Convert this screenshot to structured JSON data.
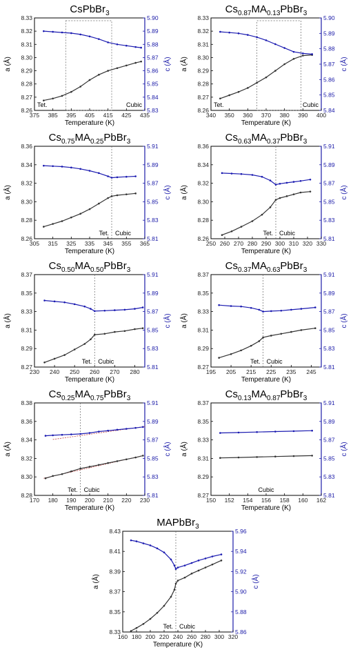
{
  "colors": {
    "a_series": "#333333",
    "c_series": "#1a1ab0",
    "right_axis": "#1a1aa8",
    "fit_line": "#c04040",
    "guide": "#666666"
  },
  "chart_data": [
    {
      "type": "line",
      "title": {
        "pre": "CsPbBr",
        "sub1": "",
        "mid": "",
        "sub2": "3"
      },
      "xlabel": "Temperature (K)",
      "ylabel_left": "a (Å)",
      "ylabel_right": "c (Å)",
      "xlim": [
        375,
        435
      ],
      "xticks": [
        "375",
        "385",
        "395",
        "405",
        "415",
        "425",
        "435"
      ],
      "ylim_left": [
        8.26,
        8.33
      ],
      "yticks_left": [
        "8.26",
        "8.27",
        "8.28",
        "8.29",
        "8.30",
        "8.31",
        "8.32",
        "8.33"
      ],
      "ylim_right": [
        5.83,
        5.9
      ],
      "yticks_right": [
        "5.83",
        "5.84",
        "5.85",
        "5.86",
        "5.87",
        "5.88",
        "5.89",
        "5.90"
      ],
      "phase_labels": [
        "Tet.",
        "Cubic"
      ],
      "phase_boundary": 417,
      "box": [
        392,
        417
      ],
      "series": [
        {
          "name": "a",
          "axis": "left",
          "x": [
            380,
            385,
            390,
            395,
            400,
            405,
            410,
            415,
            420,
            425,
            430,
            433
          ],
          "y": [
            8.2675,
            8.269,
            8.271,
            8.274,
            8.278,
            8.283,
            8.287,
            8.29,
            8.292,
            8.294,
            8.296,
            8.297
          ]
        },
        {
          "name": "c",
          "axis": "right",
          "x": [
            380,
            385,
            390,
            395,
            400,
            405,
            410,
            415,
            420,
            425,
            430,
            433
          ],
          "y": [
            5.89,
            5.8895,
            5.889,
            5.8885,
            5.8875,
            5.886,
            5.884,
            5.8815,
            5.88,
            5.879,
            5.878,
            5.8775
          ]
        }
      ]
    },
    {
      "type": "line",
      "title": {
        "pre": "Cs",
        "sub1": "0.87",
        "mid": "MA",
        "sub2": "0.13",
        "post": "PbBr",
        "sub3": "3"
      },
      "xlabel": "Temperature (K)",
      "ylabel_left": "a (Å)",
      "ylabel_right": "c (Å)",
      "xlim": [
        340,
        400
      ],
      "xticks": [
        "340",
        "350",
        "360",
        "370",
        "380",
        "390",
        "400"
      ],
      "ylim_left": [
        8.26,
        8.33
      ],
      "yticks_left": [
        "8.26",
        "8.27",
        "8.28",
        "8.29",
        "8.30",
        "8.31",
        "8.32",
        "8.33"
      ],
      "ylim_right": [
        5.84,
        5.9
      ],
      "yticks_right": [
        "5.84",
        "5.85",
        "5.86",
        "5.87",
        "5.88",
        "5.89",
        "5.90"
      ],
      "phase_labels": [
        "Tet.",
        "Cubic"
      ],
      "phase_boundary": 389,
      "box": [
        365,
        389
      ],
      "series": [
        {
          "name": "a",
          "axis": "left",
          "x": [
            345,
            350,
            355,
            360,
            365,
            370,
            375,
            380,
            385,
            390,
            395
          ],
          "y": [
            8.269,
            8.2715,
            8.274,
            8.277,
            8.281,
            8.285,
            8.29,
            8.295,
            8.299,
            8.3015,
            8.302
          ]
        },
        {
          "name": "c",
          "axis": "right",
          "x": [
            345,
            350,
            355,
            360,
            365,
            370,
            375,
            380,
            385,
            390,
            395
          ],
          "y": [
            5.891,
            5.8905,
            5.89,
            5.889,
            5.8875,
            5.8855,
            5.883,
            5.8805,
            5.878,
            5.877,
            5.8765
          ]
        }
      ]
    },
    {
      "type": "line",
      "title": {
        "pre": "Cs",
        "sub1": "0.75",
        "mid": "MA",
        "sub2": "0.25",
        "post": "PbBr",
        "sub3": "3"
      },
      "xlabel": "Temperature (K)",
      "ylabel_left": "a (Å)",
      "ylabel_right": "c (Å)",
      "xlim": [
        305,
        365
      ],
      "xticks": [
        "305",
        "315",
        "325",
        "335",
        "345",
        "355",
        "365"
      ],
      "ylim_left": [
        8.26,
        8.36
      ],
      "yticks_left": [
        "8.26",
        "8.28",
        "8.30",
        "8.32",
        "8.34",
        "8.36"
      ],
      "ylim_right": [
        5.81,
        5.91
      ],
      "yticks_right": [
        "5.81",
        "5.83",
        "5.85",
        "5.87",
        "5.89",
        "5.91"
      ],
      "phase_labels": [
        "Tet.",
        "Cubic"
      ],
      "phase_boundary": 347,
      "series": [
        {
          "name": "a",
          "axis": "left",
          "x": [
            310,
            315,
            320,
            325,
            330,
            335,
            340,
            345,
            347,
            350,
            355,
            360
          ],
          "y": [
            8.273,
            8.276,
            8.279,
            8.283,
            8.287,
            8.292,
            8.298,
            8.304,
            8.306,
            8.307,
            8.308,
            8.309
          ]
        },
        {
          "name": "c",
          "axis": "right",
          "x": [
            310,
            315,
            320,
            325,
            330,
            335,
            340,
            345,
            347,
            350,
            355,
            360
          ],
          "y": [
            5.889,
            5.8885,
            5.888,
            5.887,
            5.8855,
            5.8835,
            5.881,
            5.8775,
            5.876,
            5.8765,
            5.877,
            5.8775
          ]
        }
      ]
    },
    {
      "type": "line",
      "title": {
        "pre": "Cs",
        "sub1": "0.63",
        "mid": "MA",
        "sub2": "0.37",
        "post": "PbBr",
        "sub3": "3"
      },
      "xlabel": "Temperature (K)",
      "ylabel_left": "a (Å)",
      "ylabel_right": "c (Å)",
      "xlim": [
        250,
        330
      ],
      "xticks": [
        "250",
        "260",
        "270",
        "280",
        "290",
        "300",
        "310",
        "320",
        "330"
      ],
      "ylim_left": [
        8.26,
        8.36
      ],
      "yticks_left": [
        "8.26",
        "8.28",
        "8.30",
        "8.32",
        "8.34",
        "8.36"
      ],
      "ylim_right": [
        5.81,
        5.91
      ],
      "yticks_right": [
        "5.81",
        "5.83",
        "5.85",
        "5.87",
        "5.89",
        "5.91"
      ],
      "phase_labels": [
        "Tet.",
        "Cubic"
      ],
      "phase_boundary": 297,
      "series": [
        {
          "name": "a",
          "axis": "left",
          "x": [
            258,
            265,
            272,
            280,
            287,
            293,
            297,
            300,
            305,
            310,
            315,
            322
          ],
          "y": [
            8.264,
            8.268,
            8.273,
            8.279,
            8.286,
            8.294,
            8.302,
            8.304,
            8.306,
            8.308,
            8.31,
            8.311
          ]
        },
        {
          "name": "c",
          "axis": "right",
          "x": [
            258,
            265,
            272,
            280,
            287,
            293,
            297,
            300,
            305,
            310,
            315,
            322
          ],
          "y": [
            5.881,
            5.8805,
            5.88,
            5.879,
            5.877,
            5.873,
            5.8685,
            5.8695,
            5.8705,
            5.8715,
            5.8725,
            5.874
          ]
        }
      ]
    },
    {
      "type": "line",
      "title": {
        "pre": "Cs",
        "sub1": "0.50",
        "mid": "MA",
        "sub2": "0.50",
        "post": "PbBr",
        "sub3": "3"
      },
      "xlabel": "Temperature (K)",
      "ylabel_left": "a (Å)",
      "ylabel_right": "c (Å)",
      "xlim": [
        230,
        285
      ],
      "xticks": [
        "230",
        "240",
        "250",
        "260",
        "270",
        "280"
      ],
      "ylim_left": [
        8.27,
        8.37
      ],
      "yticks_left": [
        "8.27",
        "8.29",
        "8.31",
        "8.33",
        "8.35",
        "8.37"
      ],
      "ylim_right": [
        5.81,
        5.91
      ],
      "yticks_right": [
        "5.81",
        "5.83",
        "5.85",
        "5.87",
        "5.89",
        "5.91"
      ],
      "phase_labels": [
        "Tet.",
        "Cubic"
      ],
      "phase_boundary": 260,
      "series": [
        {
          "name": "a",
          "axis": "left",
          "x": [
            235,
            240,
            245,
            250,
            255,
            258,
            260,
            265,
            270,
            275,
            280,
            284
          ],
          "y": [
            8.275,
            8.279,
            8.283,
            8.289,
            8.295,
            8.3,
            8.305,
            8.306,
            8.308,
            8.309,
            8.311,
            8.312
          ]
        },
        {
          "name": "c",
          "axis": "right",
          "x": [
            235,
            240,
            245,
            250,
            255,
            258,
            260,
            265,
            270,
            275,
            280,
            284
          ],
          "y": [
            5.882,
            5.881,
            5.88,
            5.878,
            5.8755,
            5.873,
            5.8705,
            5.871,
            5.8715,
            5.872,
            5.873,
            5.8745
          ]
        }
      ]
    },
    {
      "type": "line",
      "title": {
        "pre": "Cs",
        "sub1": "0.37",
        "mid": "MA",
        "sub2": "0.63",
        "post": "PbBr",
        "sub3": "3"
      },
      "xlabel": "Temperature (K)",
      "ylabel_left": "a (Å)",
      "ylabel_right": "c (Å)",
      "xlim": [
        195,
        250
      ],
      "xticks": [
        "195",
        "205",
        "215",
        "225",
        "235",
        "245"
      ],
      "ylim_left": [
        8.27,
        8.37
      ],
      "yticks_left": [
        "8.27",
        "8.29",
        "8.31",
        "8.33",
        "8.35",
        "8.37"
      ],
      "ylim_right": [
        5.81,
        5.91
      ],
      "yticks_right": [
        "5.81",
        "5.83",
        "5.85",
        "5.87",
        "5.89",
        "5.91"
      ],
      "phase_labels": [
        "Tet.",
        "Cubic"
      ],
      "phase_boundary": 221,
      "series": [
        {
          "name": "a",
          "axis": "left",
          "x": [
            199,
            205,
            210,
            215,
            219,
            221,
            225,
            230,
            235,
            240,
            247
          ],
          "y": [
            8.28,
            8.284,
            8.288,
            8.293,
            8.298,
            8.302,
            8.304,
            8.306,
            8.308,
            8.31,
            8.312
          ]
        },
        {
          "name": "c",
          "axis": "right",
          "x": [
            199,
            205,
            210,
            215,
            219,
            221,
            225,
            230,
            235,
            240,
            247
          ],
          "y": [
            5.877,
            5.876,
            5.8755,
            5.874,
            5.872,
            5.87,
            5.8705,
            5.871,
            5.872,
            5.873,
            5.8745
          ]
        }
      ]
    },
    {
      "type": "line",
      "title": {
        "pre": "Cs",
        "sub1": "0.25",
        "mid": "MA",
        "sub2": "0.75",
        "post": "PbBr",
        "sub3": "3"
      },
      "xlabel": "Temperature (K)",
      "ylabel_left": "a (Å)",
      "ylabel_right": "c (Å)",
      "xlim": [
        170,
        230
      ],
      "xticks": [
        "170",
        "180",
        "190",
        "200",
        "210",
        "220",
        "230"
      ],
      "ylim_left": [
        8.28,
        8.38
      ],
      "yticks_left": [
        "8.28",
        "8.30",
        "8.32",
        "8.34",
        "8.36",
        "8.38"
      ],
      "ylim_right": [
        5.81,
        5.91
      ],
      "yticks_right": [
        "5.81",
        "5.83",
        "5.85",
        "5.87",
        "5.89",
        "5.91"
      ],
      "phase_labels": [
        "Tet.",
        "Cubic"
      ],
      "phase_boundary": 195,
      "series": [
        {
          "name": "a",
          "axis": "left",
          "x": [
            176,
            180,
            185,
            190,
            195,
            200,
            205,
            210,
            215,
            220,
            225,
            229
          ],
          "y": [
            8.2985,
            8.301,
            8.303,
            8.306,
            8.309,
            8.311,
            8.313,
            8.315,
            8.317,
            8.319,
            8.321,
            8.323
          ]
        },
        {
          "name": "c",
          "axis": "right",
          "x": [
            176,
            180,
            185,
            190,
            195,
            200,
            205,
            210,
            215,
            220,
            225,
            229
          ],
          "y": [
            5.8745,
            5.875,
            5.8755,
            5.876,
            5.8765,
            5.8775,
            5.879,
            5.88,
            5.881,
            5.882,
            5.883,
            5.884
          ]
        }
      ],
      "fits": [
        {
          "axis": "left",
          "x": [
            175,
            230
          ],
          "y": [
            8.2985,
            8.3235
          ]
        },
        {
          "axis": "right",
          "x": [
            180,
            230
          ],
          "y": [
            5.8705,
            5.8845
          ]
        }
      ]
    },
    {
      "type": "line",
      "title": {
        "pre": "Cs",
        "sub1": "0.13",
        "mid": "MA",
        "sub2": "0.87",
        "post": "PbBr",
        "sub3": "3"
      },
      "xlabel": "Temperature (K)",
      "ylabel_left": "a (Å)",
      "ylabel_right": "c (Å)",
      "xlim": [
        150,
        162
      ],
      "xticks": [
        "150",
        "152",
        "154",
        "156",
        "158",
        "160",
        "162"
      ],
      "ylim_left": [
        8.27,
        8.37
      ],
      "yticks_left": [
        "8.27",
        "8.29",
        "8.31",
        "8.33",
        "8.35",
        "8.37"
      ],
      "ylim_right": [
        5.81,
        5.91
      ],
      "yticks_right": [
        "5.81",
        "5.83",
        "5.85",
        "5.87",
        "5.89",
        "5.91"
      ],
      "phase_labels": [
        "",
        "Cubic"
      ],
      "series": [
        {
          "name": "a",
          "axis": "left",
          "x": [
            151,
            153,
            155,
            157,
            159,
            161
          ],
          "y": [
            8.3105,
            8.311,
            8.3115,
            8.312,
            8.3125,
            8.313
          ]
        },
        {
          "name": "c",
          "axis": "right",
          "x": [
            151,
            153,
            155,
            157,
            159,
            161
          ],
          "y": [
            5.8775,
            5.878,
            5.8785,
            5.879,
            5.8795,
            5.88
          ]
        }
      ]
    },
    {
      "type": "line",
      "title": {
        "pre": "MAPbBr",
        "sub1": "",
        "mid": "",
        "sub2": "3"
      },
      "xlabel": "Temperature (K)",
      "ylabel_left": "a (Å)",
      "ylabel_right": "c (Å)",
      "xlim": [
        160,
        320
      ],
      "xticks": [
        "160",
        "180",
        "200",
        "220",
        "240",
        "260",
        "280",
        "300",
        "320"
      ],
      "ylim_left": [
        8.33,
        8.43
      ],
      "yticks_left": [
        "8.33",
        "8.35",
        "8.37",
        "8.39",
        "8.41",
        "8.43"
      ],
      "ylim_right": [
        5.86,
        5.96
      ],
      "yticks_right": [
        "5.86",
        "5.88",
        "5.90",
        "5.92",
        "5.94",
        "5.96"
      ],
      "phase_labels": [
        "Tet.",
        "Cubic"
      ],
      "phase_boundary": 237,
      "series": [
        {
          "name": "a",
          "axis": "left",
          "x": [
            172,
            180,
            190,
            200,
            210,
            220,
            230,
            235,
            237,
            240,
            250,
            260,
            270,
            280,
            290,
            303
          ],
          "y": [
            8.331,
            8.334,
            8.338,
            8.343,
            8.349,
            8.356,
            8.365,
            8.372,
            8.378,
            8.381,
            8.384,
            8.388,
            8.391,
            8.394,
            8.397,
            8.401
          ]
        },
        {
          "name": "c",
          "axis": "right",
          "x": [
            172,
            180,
            190,
            200,
            210,
            220,
            230,
            235,
            237,
            240,
            250,
            260,
            270,
            280,
            290,
            303
          ],
          "y": [
            5.951,
            5.95,
            5.948,
            5.946,
            5.943,
            5.939,
            5.932,
            5.926,
            5.9225,
            5.924,
            5.926,
            5.9285,
            5.931,
            5.933,
            5.935,
            5.937
          ]
        }
      ]
    }
  ]
}
